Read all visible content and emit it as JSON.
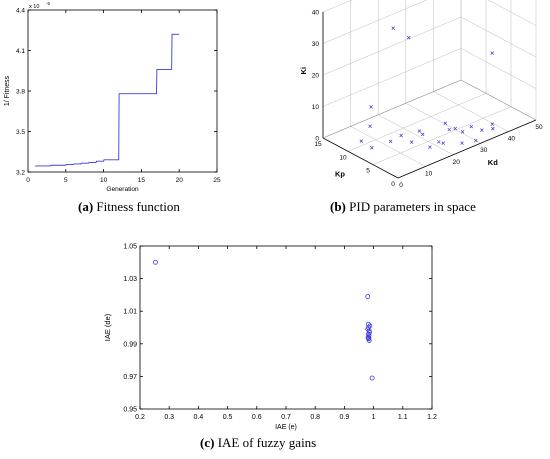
{
  "chart_data": [
    {
      "type": "line",
      "title": "",
      "caption": {
        "letter": "(a)",
        "text": " Fitness function"
      },
      "xlabel": "Generation",
      "ylabel": "1/ Fitness",
      "y_exponent": "x 10",
      "y_exponent_power": "-5",
      "xlim": [
        0,
        25
      ],
      "ylim": [
        3.2,
        4.4
      ],
      "xticks": [
        "0",
        "5",
        "10",
        "15",
        "20",
        "25"
      ],
      "yticks": [
        "3.2",
        "3.5",
        "3.8",
        "4.1",
        "4.4"
      ],
      "grid": false,
      "x": [
        1,
        2,
        3,
        4,
        5,
        6,
        7,
        8,
        9,
        10,
        11,
        12,
        13,
        14,
        15,
        16,
        17,
        18,
        19,
        20
      ],
      "y": [
        3.24,
        3.245,
        3.245,
        3.25,
        3.25,
        3.255,
        3.26,
        3.265,
        3.27,
        3.28,
        3.29,
        3.29,
        3.78,
        3.78,
        3.78,
        3.78,
        3.78,
        3.96,
        3.96,
        4.22
      ]
    },
    {
      "type": "scatter",
      "title": "",
      "caption": {
        "letter": "(b)",
        "text": " PID parameters in space"
      },
      "xlabel": "Kd",
      "ylabel": "Kp",
      "zlabel": "Ki",
      "xlim": [
        0,
        50
      ],
      "ylim": [
        0,
        15
      ],
      "zlim": [
        0,
        40
      ],
      "xticks": [
        "0",
        "10",
        "20",
        "30",
        "40",
        "50"
      ],
      "yticks": [
        "0",
        "5",
        "10",
        "15"
      ],
      "zticks": [
        "0",
        "10",
        "20",
        "30",
        "40"
      ],
      "grid": true,
      "marker": "x",
      "points": [
        {
          "x": 3,
          "y": 9,
          "z": 3
        },
        {
          "x": 5,
          "y": 8,
          "z": 1
        },
        {
          "x": 8,
          "y": 10,
          "z": 5
        },
        {
          "x": 10,
          "y": 7,
          "z": 2
        },
        {
          "x": 12,
          "y": 6,
          "z": 4
        },
        {
          "x": 14,
          "y": 5,
          "z": 2
        },
        {
          "x": 15,
          "y": 4,
          "z": 6
        },
        {
          "x": 17,
          "y": 3,
          "z": 1
        },
        {
          "x": 18,
          "y": 5,
          "z": 3
        },
        {
          "x": 20,
          "y": 2,
          "z": 2
        },
        {
          "x": 22,
          "y": 4,
          "z": 0
        },
        {
          "x": 24,
          "y": 3,
          "z": 4
        },
        {
          "x": 25,
          "y": 1,
          "z": 1
        },
        {
          "x": 27,
          "y": 2,
          "z": 3
        },
        {
          "x": 28,
          "y": 6,
          "z": 2
        },
        {
          "x": 30,
          "y": 1,
          "z": 0
        },
        {
          "x": 32,
          "y": 3,
          "z": 2
        },
        {
          "x": 34,
          "y": 2,
          "z": 1
        },
        {
          "x": 36,
          "y": 1,
          "z": 3
        },
        {
          "x": 38,
          "y": 2,
          "z": 0
        },
        {
          "x": 12,
          "y": 12,
          "z": 8
        },
        {
          "x": 20,
          "y": 12,
          "z": 30
        },
        {
          "x": 22,
          "y": 10,
          "z": 28
        },
        {
          "x": 45,
          "y": 6,
          "z": 18
        },
        {
          "x": 28,
          "y": 4,
          "z": 2
        }
      ]
    },
    {
      "type": "scatter",
      "title": "",
      "caption": {
        "letter": "(c)",
        "text": " IAE of fuzzy gains"
      },
      "xlabel": "IAE (e)",
      "ylabel": "IAE (de)",
      "xlim": [
        0.2,
        1.2
      ],
      "ylim": [
        0.95,
        1.05
      ],
      "xticks": [
        "0.2",
        "0.3",
        "0.4",
        "0.5",
        "0.6",
        "0.7",
        "0.8",
        "0.9",
        "1",
        "1.1",
        "1.2"
      ],
      "yticks": [
        "0.95",
        "0.97",
        "0.99",
        "1.01",
        "1.03",
        "1.05"
      ],
      "grid": false,
      "marker": "o",
      "points": [
        {
          "x": 0.253,
          "y": 1.04
        },
        {
          "x": 0.98,
          "y": 1.019
        },
        {
          "x": 0.982,
          "y": 1.002
        },
        {
          "x": 0.983,
          "y": 1.0
        },
        {
          "x": 0.985,
          "y": 0.998
        },
        {
          "x": 0.982,
          "y": 0.996
        },
        {
          "x": 0.984,
          "y": 0.995
        },
        {
          "x": 0.981,
          "y": 0.994
        },
        {
          "x": 0.983,
          "y": 0.993
        },
        {
          "x": 0.985,
          "y": 0.992
        },
        {
          "x": 0.986,
          "y": 0.997
        },
        {
          "x": 0.98,
          "y": 0.999
        },
        {
          "x": 0.987,
          "y": 1.001
        },
        {
          "x": 0.984,
          "y": 0.9935
        },
        {
          "x": 0.995,
          "y": 0.969
        }
      ]
    }
  ]
}
